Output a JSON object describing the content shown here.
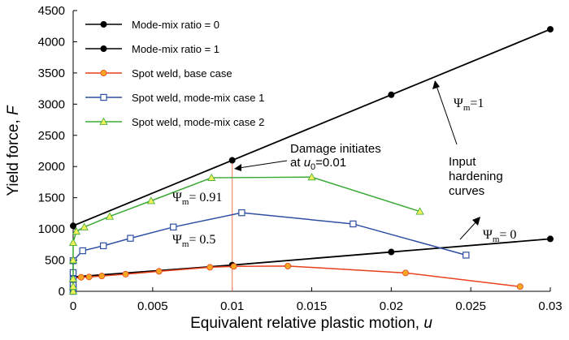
{
  "chart_data": {
    "type": "line",
    "xlabel": "Equivalent relative plastic motion, ",
    "xlabel_var": "u",
    "ylabel": "Yield force, ",
    "ylabel_var": "F",
    "xlim": [
      0,
      0.03
    ],
    "ylim": [
      0,
      4500
    ],
    "x_ticks": [
      "0",
      "0.005",
      "0.01",
      "0.015",
      "0.02",
      "0.025",
      "0.03"
    ],
    "x_tick_values": [
      0,
      0.005,
      0.01,
      0.015,
      0.02,
      0.025,
      0.03
    ],
    "y_ticks": [
      "0",
      "500",
      "1000",
      "1500",
      "2000",
      "2500",
      "3000",
      "3500",
      "4000",
      "4500"
    ],
    "y_tick_values": [
      0,
      500,
      1000,
      1500,
      2000,
      2500,
      3000,
      3500,
      4000,
      4500
    ],
    "grid": false,
    "legend_position": "top-left",
    "series": [
      {
        "name": "Mode-mix ratio = 0",
        "color": "#000000",
        "marker": "circle-filled",
        "points": [
          [
            0,
            230
          ],
          [
            0.01,
            420
          ],
          [
            0.02,
            630
          ],
          [
            0.03,
            840
          ]
        ]
      },
      {
        "name": "Mode-mix ratio = 1",
        "color": "#000000",
        "marker": "circle-filled",
        "points": [
          [
            0,
            1050
          ],
          [
            0.01,
            2100
          ],
          [
            0.02,
            3150
          ],
          [
            0.03,
            4200
          ]
        ]
      },
      {
        "name": "Spot weld, base case",
        "color": "#e8401c",
        "marker_fill": "#f5a623",
        "marker": "circle-filled",
        "points": [
          [
            0,
            0
          ],
          [
            0,
            40
          ],
          [
            0,
            80
          ],
          [
            0,
            120
          ],
          [
            0,
            170
          ],
          [
            0,
            210
          ],
          [
            0.0005,
            225
          ],
          [
            0.001,
            230
          ],
          [
            0.0018,
            245
          ],
          [
            0.0033,
            275
          ],
          [
            0.0054,
            320
          ],
          [
            0.0086,
            385
          ],
          [
            0.0101,
            400
          ],
          [
            0.0135,
            405
          ],
          [
            0.0209,
            295
          ],
          [
            0.0281,
            75
          ]
        ]
      },
      {
        "name": "Spot weld, mode-mix case 1",
        "color": "#2e4fa3",
        "marker_fill": "#ffffff",
        "marker": "square-open",
        "points": [
          [
            0,
            0
          ],
          [
            0,
            60
          ],
          [
            0,
            120
          ],
          [
            0,
            190
          ],
          [
            0,
            300
          ],
          [
            0,
            490
          ],
          [
            0.0006,
            650
          ],
          [
            0.0019,
            730
          ],
          [
            0.0036,
            850
          ],
          [
            0.0063,
            1030
          ],
          [
            0.0106,
            1260
          ],
          [
            0.0176,
            1080
          ],
          [
            0.0247,
            580
          ]
        ]
      },
      {
        "name": "Spot weld, mode-mix case 2",
        "color": "#3aaa35",
        "marker_fill": "#f3f05a",
        "marker": "triangle-filled",
        "points": [
          [
            0,
            0
          ],
          [
            0,
            80
          ],
          [
            0,
            200
          ],
          [
            0,
            500
          ],
          [
            0,
            780
          ],
          [
            0.0002,
            960
          ],
          [
            0.0007,
            1030
          ],
          [
            0.0023,
            1200
          ],
          [
            0.0049,
            1450
          ],
          [
            0.0087,
            1820
          ],
          [
            0.015,
            1830
          ],
          [
            0.0218,
            1280
          ]
        ]
      }
    ],
    "vline": {
      "x": 0.01,
      "color": "#f08c6e"
    },
    "annotations": {
      "damage_line1": "Damage initiates",
      "damage_line2_pre": "at ",
      "damage_line2_var": "u",
      "damage_line2_sub": "0",
      "damage_line2_post": "=0.01",
      "input_line1": "Input",
      "input_line2": "hardening",
      "input_line3": "curves",
      "psi_symbol": "Ψ",
      "psi_sub": "m",
      "psi_1": "=1",
      "psi_0": "= 0",
      "psi_091": "= 0.91",
      "psi_05": "= 0.5"
    }
  }
}
